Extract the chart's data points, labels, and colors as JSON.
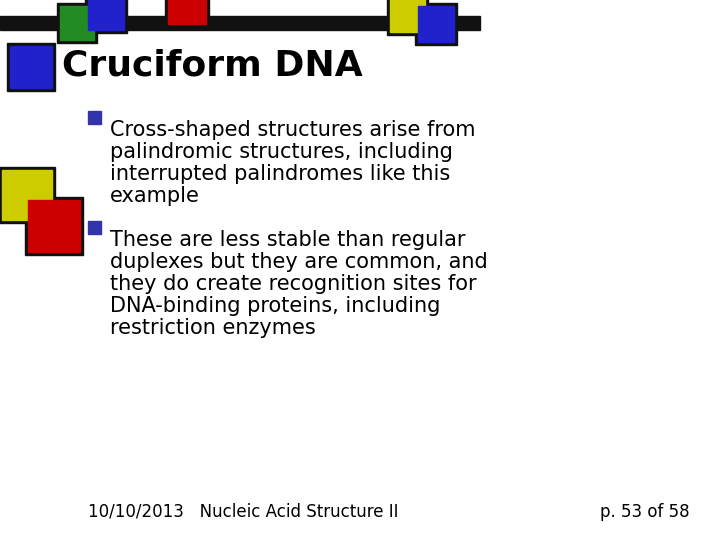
{
  "title": "Cruciform DNA",
  "bullet1_lines": [
    "Cross-shaped structures arise from",
    "palindromic structures, including",
    "interrupted palindromes like this",
    "example"
  ],
  "bullet2_lines": [
    "These are less stable than regular",
    "duplexes but they are common, and",
    "they do create recognition sites for",
    "DNA-binding proteins, including",
    "restriction enzymes"
  ],
  "footer_left": "10/10/2013   Nucleic Acid Structure II",
  "footer_right": "p. 53 of 58",
  "bg_color": "#ffffff",
  "title_color": "#000000",
  "text_color": "#000000",
  "bullet_color": "#3333aa",
  "title_fontsize": 26,
  "body_fontsize": 15,
  "footer_fontsize": 12,
  "top_bar_color": "#111111"
}
